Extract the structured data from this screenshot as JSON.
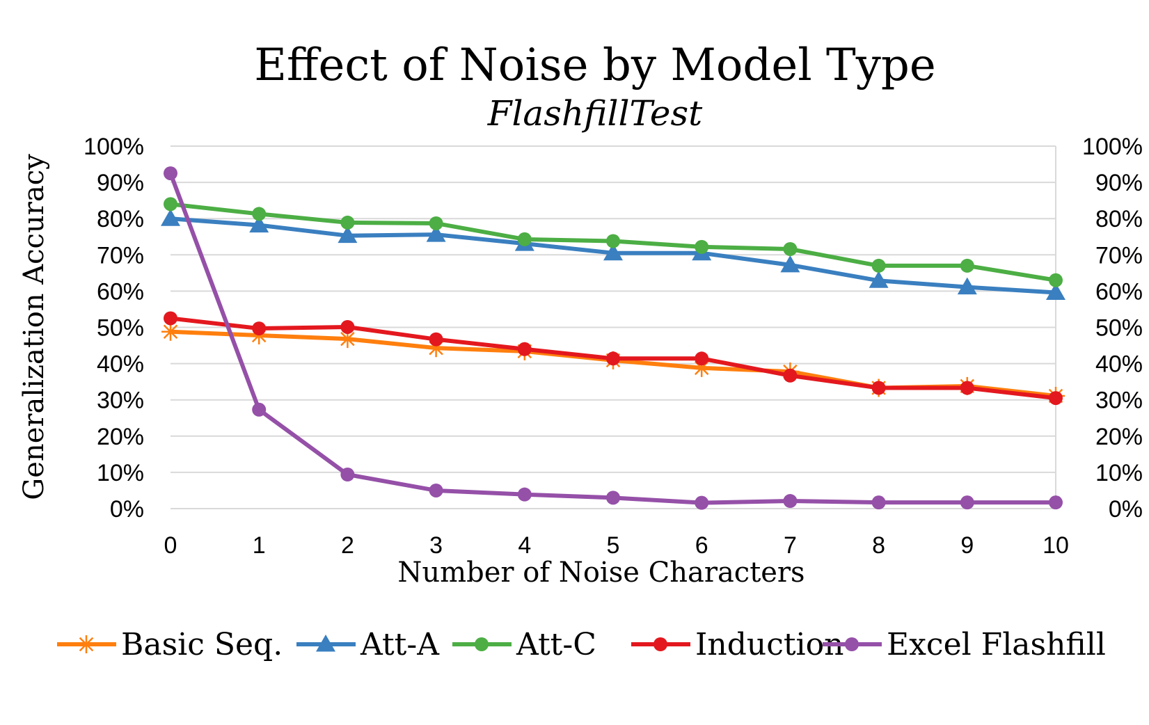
{
  "chart_data": {
    "type": "line",
    "title": "Effect of Noise by Model Type",
    "subtitle": "FlashfillTest",
    "xlabel": "Number of Noise Characters",
    "ylabel": "Generalization Accuracy",
    "x": [
      0,
      1,
      2,
      3,
      4,
      5,
      6,
      7,
      8,
      9,
      10
    ],
    "ylim": [
      0,
      100
    ],
    "yticks": [
      "0%",
      "10%",
      "20%",
      "30%",
      "40%",
      "50%",
      "60%",
      "70%",
      "80%",
      "90%",
      "100%"
    ],
    "grid": "horizontal",
    "legend_position": "bottom",
    "series": [
      {
        "name": "Basic Seq.",
        "color": "#ff7f0e",
        "marker": "star",
        "values": [
          48.8,
          47.8,
          46.8,
          44.3,
          43.4,
          40.9,
          38.8,
          37.8,
          33.3,
          33.8,
          31.1
        ]
      },
      {
        "name": "Att-A",
        "color": "#3a7fc0",
        "marker": "triangle",
        "values": [
          80.0,
          78.2,
          75.3,
          75.6,
          73.1,
          70.5,
          70.5,
          67.2,
          62.9,
          61.1,
          59.6
        ]
      },
      {
        "name": "Att-C",
        "color": "#4cae44",
        "marker": "circle",
        "values": [
          84.0,
          81.3,
          78.9,
          78.7,
          74.3,
          73.8,
          72.2,
          71.6,
          67.0,
          67.0,
          63.0
        ]
      },
      {
        "name": "Induction",
        "color": "#e3181e",
        "marker": "circle",
        "values": [
          52.5,
          49.7,
          50.1,
          46.7,
          44.0,
          41.4,
          41.4,
          36.7,
          33.3,
          33.3,
          30.5
        ]
      },
      {
        "name": "Excel Flashfill",
        "color": "#9550a8",
        "marker": "circle",
        "values": [
          92.5,
          27.3,
          9.4,
          5.0,
          3.9,
          3.0,
          1.6,
          2.1,
          1.7,
          1.7,
          1.7
        ]
      }
    ]
  }
}
